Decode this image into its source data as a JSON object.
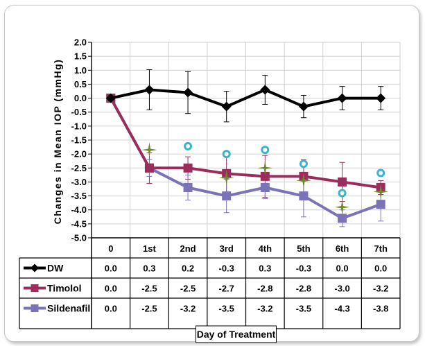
{
  "chart_data": {
    "type": "line",
    "title": "",
    "xlabel": "Day of Treatment",
    "ylabel": "Changes in Mean IOP (mmHg)",
    "ylim": [
      -5.0,
      2.0
    ],
    "yticks": [
      "2.0",
      "1.5",
      "1.0",
      "0.5",
      "0.0",
      "-0.5",
      "-1.0",
      "-1.5",
      "-2.0",
      "-2.5",
      "-3.0",
      "-3.5",
      "-4.0",
      "-4.5",
      "-5.0"
    ],
    "categories": [
      "0",
      "1st",
      "2nd",
      "3rd",
      "4th",
      "5th",
      "6th",
      "7th"
    ],
    "grid": true,
    "legend": "data-table",
    "series": [
      {
        "name": "DW",
        "color": "#000000",
        "marker": "diamond",
        "values": [
          0.0,
          0.3,
          0.2,
          -0.3,
          0.3,
          -0.3,
          0.0,
          0.0
        ],
        "labels": [
          "0.0",
          "0.3",
          "0.2",
          "-0.3",
          "0.3",
          "-0.3",
          "0.0",
          "0.0"
        ],
        "error": [
          0,
          0.72,
          0.75,
          0.55,
          0.52,
          0.4,
          0.42,
          0.42
        ]
      },
      {
        "name": "Timolol",
        "color": "#9b2d5c",
        "marker": "square",
        "values": [
          0.0,
          -2.5,
          -2.5,
          -2.7,
          -2.8,
          -2.8,
          -3.0,
          -3.2
        ],
        "labels": [
          "0.0",
          "-2.5",
          "-2.5",
          "-2.7",
          "-2.8",
          "-2.8",
          "-3.0",
          "-3.2"
        ],
        "error": [
          0,
          0.55,
          0.4,
          0.7,
          0.75,
          0.6,
          0.7,
          0.25
        ]
      },
      {
        "name": "Sildenafil",
        "color": "#7a73b5",
        "marker": "square",
        "values": [
          0.0,
          -2.5,
          -3.2,
          -3.5,
          -3.2,
          -3.5,
          -4.3,
          -3.8
        ],
        "labels": [
          "0.0",
          "-2.5",
          "-3.2",
          "-3.5",
          "-3.2",
          "-3.5",
          "-4.3",
          "-3.8"
        ],
        "error": [
          0,
          0.3,
          0.45,
          0.6,
          0.4,
          0.75,
          0.3,
          0.6
        ]
      }
    ],
    "annotations": {
      "star_marker_color": "#6e8a2e",
      "circle_marker_color": "#3cb4c8",
      "stars": [
        {
          "x": "1st",
          "y": -1.85
        },
        {
          "x": "3rd",
          "y": -2.85
        },
        {
          "x": "4th",
          "y": -2.5
        },
        {
          "x": "5th",
          "y": -2.95
        },
        {
          "x": "6th",
          "y": -3.9
        },
        {
          "x": "7th",
          "y": -3.35
        }
      ],
      "circles": [
        {
          "x": "2nd",
          "y": -1.72
        },
        {
          "x": "3rd",
          "y": -2.0
        },
        {
          "x": "4th",
          "y": -1.85
        },
        {
          "x": "5th",
          "y": -2.35
        },
        {
          "x": "6th",
          "y": -3.4
        },
        {
          "x": "7th",
          "y": -2.68
        }
      ]
    }
  }
}
